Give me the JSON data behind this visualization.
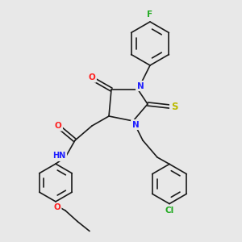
{
  "bg_color": "#e8e8e8",
  "bond_color": "#1a1a1a",
  "bond_width": 1.2,
  "atom_colors": {
    "N": "#2020ff",
    "O": "#ff2020",
    "S": "#bbbb00",
    "F": "#20aa20",
    "Cl": "#20aa20",
    "H": "#888888"
  },
  "font_size": 6.5,
  "fig_size": [
    3.0,
    3.0
  ],
  "dpi": 100,
  "xlim": [
    0,
    10
  ],
  "ylim": [
    0,
    10
  ]
}
